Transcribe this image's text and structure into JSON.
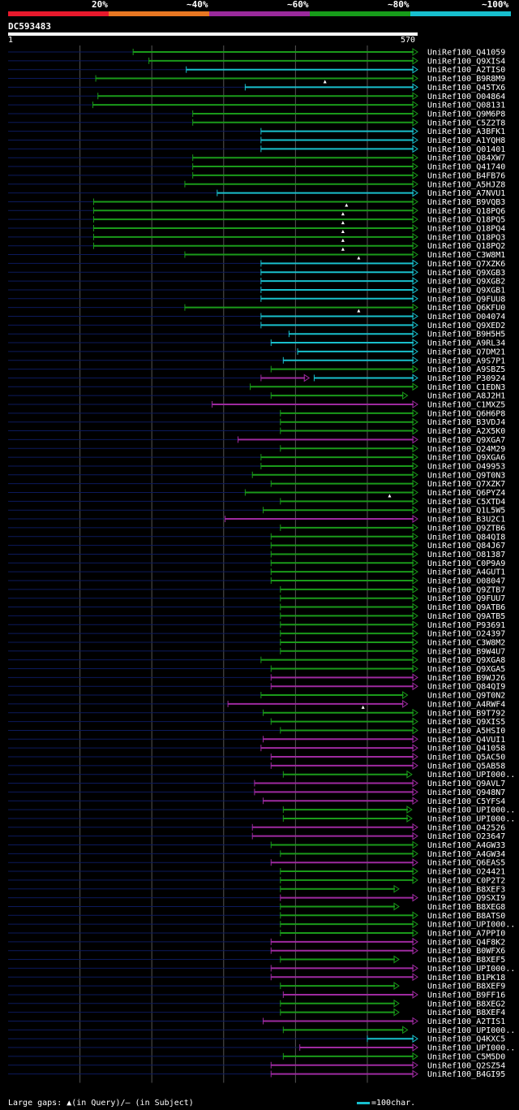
{
  "identity_legend": [
    {
      "label": "20%",
      "color": "#e8192c"
    },
    {
      "label": "~40%",
      "color": "#e87722"
    },
    {
      "label": "~60%",
      "color": "#9a2a9c"
    },
    {
      "label": "~80%",
      "color": "#179c1a"
    },
    {
      "label": "~100%",
      "color": "#17bfce"
    }
  ],
  "query": {
    "name": "DC593483",
    "start": "1",
    "end": "570",
    "length": 570
  },
  "footer": {
    "gaps_text": "Large gaps: ▲(in Query)/– (in Subject)",
    "scale_text": "=100char."
  },
  "colors": {
    "g": "#1a9a1a",
    "c": "#19bfcc",
    "m": "#9e2aa0",
    "track": "#0c1a5c",
    "grid": "#555555"
  },
  "hits": [
    {
      "id": "UniRef100_Q41059",
      "start": 174,
      "end": 570,
      "color": "g"
    },
    {
      "id": "UniRef100_Q9XIS4",
      "start": 196,
      "end": 570,
      "color": "g"
    },
    {
      "id": "UniRef100_A2TIS0",
      "start": 248,
      "end": 570,
      "color": "c"
    },
    {
      "id": "UniRef100_B9R8M9",
      "start": 122,
      "end": 570,
      "color": "g",
      "gap": 441
    },
    {
      "id": "UniRef100_Q45TX6",
      "start": 330,
      "end": 570,
      "color": "c"
    },
    {
      "id": "UniRef100_O04864",
      "start": 125,
      "end": 570,
      "color": "g"
    },
    {
      "id": "UniRef100_Q08131",
      "start": 118,
      "end": 570,
      "color": "g"
    },
    {
      "id": "UniRef100_Q9M6P8",
      "start": 257,
      "end": 570,
      "color": "g"
    },
    {
      "id": "UniRef100_C5Z2T8",
      "start": 257,
      "end": 570,
      "color": "g"
    },
    {
      "id": "UniRef100_A3BFK1",
      "start": 352,
      "end": 570,
      "color": "c"
    },
    {
      "id": "UniRef100_A1YQH8",
      "start": 352,
      "end": 570,
      "color": "c"
    },
    {
      "id": "UniRef100_Q01401",
      "start": 352,
      "end": 570,
      "color": "c"
    },
    {
      "id": "UniRef100_Q84XW7",
      "start": 257,
      "end": 570,
      "color": "g"
    },
    {
      "id": "UniRef100_Q41740",
      "start": 257,
      "end": 570,
      "color": "g"
    },
    {
      "id": "UniRef100_B4FB76",
      "start": 257,
      "end": 570,
      "color": "g"
    },
    {
      "id": "UniRef100_A5HJZ8",
      "start": 246,
      "end": 570,
      "color": "g"
    },
    {
      "id": "UniRef100_A7NVU1",
      "start": 291,
      "end": 570,
      "color": "c"
    },
    {
      "id": "UniRef100_B9VQB3",
      "start": 119,
      "end": 570,
      "color": "g",
      "gap": 471
    },
    {
      "id": "UniRef100_Q18PQ6",
      "start": 119,
      "end": 570,
      "color": "g",
      "gap": 466
    },
    {
      "id": "UniRef100_Q18PQ5",
      "start": 119,
      "end": 570,
      "color": "g",
      "gap": 466
    },
    {
      "id": "UniRef100_Q18PQ4",
      "start": 119,
      "end": 570,
      "color": "g",
      "gap": 466
    },
    {
      "id": "UniRef100_Q18PQ3",
      "start": 119,
      "end": 570,
      "color": "g",
      "gap": 466
    },
    {
      "id": "UniRef100_Q18PQ2",
      "start": 119,
      "end": 570,
      "color": "g",
      "gap": 466
    },
    {
      "id": "UniRef100_C3W8M1",
      "start": 246,
      "end": 570,
      "color": "g",
      "gap": 488
    },
    {
      "id": "UniRef100_Q7XZK6",
      "start": 352,
      "end": 570,
      "color": "c"
    },
    {
      "id": "UniRef100_Q9XGB3",
      "start": 352,
      "end": 570,
      "color": "c"
    },
    {
      "id": "UniRef100_Q9XGB2",
      "start": 352,
      "end": 570,
      "color": "c"
    },
    {
      "id": "UniRef100_Q9XGB1",
      "start": 352,
      "end": 570,
      "color": "c"
    },
    {
      "id": "UniRef100_Q9FUU8",
      "start": 352,
      "end": 570,
      "color": "c"
    },
    {
      "id": "UniRef100_Q6KFU0",
      "start": 246,
      "end": 570,
      "color": "g",
      "gap": 488
    },
    {
      "id": "UniRef100_O04074",
      "start": 352,
      "end": 570,
      "color": "c"
    },
    {
      "id": "UniRef100_Q9XED2",
      "start": 352,
      "end": 570,
      "color": "c"
    },
    {
      "id": "UniRef100_B9H5H5",
      "start": 391,
      "end": 570,
      "color": "c"
    },
    {
      "id": "UniRef100_A9RL34",
      "start": 366,
      "end": 570,
      "color": "c"
    },
    {
      "id": "UniRef100_Q7DM21",
      "start": 403,
      "end": 570,
      "color": "c"
    },
    {
      "id": "UniRef100_A9S7P1",
      "start": 383,
      "end": 570,
      "color": "c"
    },
    {
      "id": "UniRef100_A9SBZ5",
      "start": 366,
      "end": 570,
      "color": "g"
    },
    {
      "id": "UniRef100_P30924",
      "start": 352,
      "end": 570,
      "color": "m",
      "partial_end": 419,
      "segment2": {
        "start": 426,
        "end": 570,
        "color": "c"
      }
    },
    {
      "id": "UniRef100_C1EDN3",
      "start": 337,
      "end": 570,
      "color": "g"
    },
    {
      "id": "UniRef100_A8J2H1",
      "start": 366,
      "end": 556,
      "color": "g"
    },
    {
      "id": "UniRef100_C1MXZ5",
      "start": 284,
      "end": 570,
      "color": "m"
    },
    {
      "id": "UniRef100_Q6H6P8",
      "start": 379,
      "end": 570,
      "color": "g"
    },
    {
      "id": "UniRef100_B3VDJ4",
      "start": 379,
      "end": 570,
      "color": "g"
    },
    {
      "id": "UniRef100_A2X5K0",
      "start": 379,
      "end": 570,
      "color": "g"
    },
    {
      "id": "UniRef100_Q9XGA7",
      "start": 320,
      "end": 570,
      "color": "m"
    },
    {
      "id": "UniRef100_Q24M29",
      "start": 379,
      "end": 570,
      "color": "g"
    },
    {
      "id": "UniRef100_Q9XGA6",
      "start": 352,
      "end": 570,
      "color": "g"
    },
    {
      "id": "UniRef100_O49953",
      "start": 352,
      "end": 570,
      "color": "g"
    },
    {
      "id": "UniRef100_Q9T0N3",
      "start": 340,
      "end": 570,
      "color": "g"
    },
    {
      "id": "UniRef100_Q7XZK7",
      "start": 366,
      "end": 570,
      "color": "g"
    },
    {
      "id": "UniRef100_Q6PYZ4",
      "start": 330,
      "end": 570,
      "color": "g",
      "gap": 531
    },
    {
      "id": "UniRef100_C5XTD4",
      "start": 379,
      "end": 570,
      "color": "g"
    },
    {
      "id": "UniRef100_Q1L5W5",
      "start": 355,
      "end": 570,
      "color": "g"
    },
    {
      "id": "UniRef100_B3U2C1",
      "start": 302,
      "end": 570,
      "color": "m"
    },
    {
      "id": "UniRef100_Q9ZTB6",
      "start": 379,
      "end": 570,
      "color": "g"
    },
    {
      "id": "UniRef100_Q84QI8",
      "start": 366,
      "end": 570,
      "color": "g"
    },
    {
      "id": "UniRef100_Q84J67",
      "start": 366,
      "end": 570,
      "color": "g"
    },
    {
      "id": "UniRef100_O81387",
      "start": 366,
      "end": 570,
      "color": "g"
    },
    {
      "id": "UniRef100_C0P9A9",
      "start": 366,
      "end": 570,
      "color": "g"
    },
    {
      "id": "UniRef100_A4GUT1",
      "start": 366,
      "end": 570,
      "color": "g"
    },
    {
      "id": "UniRef100_O08047",
      "start": 366,
      "end": 570,
      "color": "g"
    },
    {
      "id": "UniRef100_Q9ZTB7",
      "start": 379,
      "end": 570,
      "color": "g"
    },
    {
      "id": "UniRef100_Q9FUU7",
      "start": 379,
      "end": 570,
      "color": "g"
    },
    {
      "id": "UniRef100_Q9ATB6",
      "start": 379,
      "end": 570,
      "color": "g"
    },
    {
      "id": "UniRef100_Q9ATB5",
      "start": 379,
      "end": 570,
      "color": "g"
    },
    {
      "id": "UniRef100_P93691",
      "start": 379,
      "end": 570,
      "color": "g"
    },
    {
      "id": "UniRef100_O24397",
      "start": 379,
      "end": 570,
      "color": "g"
    },
    {
      "id": "UniRef100_C3W8M2",
      "start": 379,
      "end": 570,
      "color": "g"
    },
    {
      "id": "UniRef100_B9W4U7",
      "start": 379,
      "end": 570,
      "color": "g"
    },
    {
      "id": "UniRef100_Q9XGA8",
      "start": 352,
      "end": 570,
      "color": "g"
    },
    {
      "id": "UniRef100_Q9XGA5",
      "start": 366,
      "end": 570,
      "color": "g"
    },
    {
      "id": "UniRef100_B9WJ26",
      "start": 366,
      "end": 570,
      "color": "m"
    },
    {
      "id": "UniRef100_Q84QI9",
      "start": 366,
      "end": 570,
      "color": "m"
    },
    {
      "id": "UniRef100_Q9T0N2",
      "start": 352,
      "end": 556,
      "color": "g"
    },
    {
      "id": "UniRef100_A4RWF4",
      "start": 306,
      "end": 556,
      "color": "m",
      "gap": 494
    },
    {
      "id": "UniRef100_B9T792",
      "start": 355,
      "end": 570,
      "color": "g"
    },
    {
      "id": "UniRef100_Q9XIS5",
      "start": 366,
      "end": 570,
      "color": "g"
    },
    {
      "id": "UniRef100_A5HSI0",
      "start": 379,
      "end": 570,
      "color": "g"
    },
    {
      "id": "UniRef100_Q4VUI1",
      "start": 355,
      "end": 570,
      "color": "m"
    },
    {
      "id": "UniRef100_Q41058",
      "start": 352,
      "end": 570,
      "color": "m"
    },
    {
      "id": "UniRef100_Q5AC50",
      "start": 366,
      "end": 570,
      "color": "m"
    },
    {
      "id": "UniRef100_Q5AB58",
      "start": 366,
      "end": 570,
      "color": "m"
    },
    {
      "id": "UniRef100_UPI000..",
      "start": 383,
      "end": 562,
      "color": "g"
    },
    {
      "id": "UniRef100_Q9AVL7",
      "start": 343,
      "end": 570,
      "color": "m"
    },
    {
      "id": "UniRef100_Q948N7",
      "start": 343,
      "end": 570,
      "color": "m"
    },
    {
      "id": "UniRef100_C5YFS4",
      "start": 355,
      "end": 570,
      "color": "m"
    },
    {
      "id": "UniRef100_UPI000..",
      "start": 383,
      "end": 562,
      "color": "g"
    },
    {
      "id": "UniRef100_UPI000..",
      "start": 383,
      "end": 562,
      "color": "g"
    },
    {
      "id": "UniRef100_O42526",
      "start": 340,
      "end": 570,
      "color": "m"
    },
    {
      "id": "UniRef100_O23647",
      "start": 340,
      "end": 570,
      "color": "m"
    },
    {
      "id": "UniRef100_A4GW33",
      "start": 366,
      "end": 570,
      "color": "g"
    },
    {
      "id": "UniRef100_A4GW34",
      "start": 379,
      "end": 570,
      "color": "g"
    },
    {
      "id": "UniRef100_Q6EAS5",
      "start": 366,
      "end": 570,
      "color": "m"
    },
    {
      "id": "UniRef100_O24421",
      "start": 379,
      "end": 570,
      "color": "g"
    },
    {
      "id": "UniRef100_C0P2T2",
      "start": 379,
      "end": 570,
      "color": "g"
    },
    {
      "id": "UniRef100_B8XEF3",
      "start": 379,
      "end": 544,
      "color": "g"
    },
    {
      "id": "UniRef100_Q9SXI9",
      "start": 379,
      "end": 570,
      "color": "m"
    },
    {
      "id": "UniRef100_B8XEG8",
      "start": 379,
      "end": 544,
      "color": "g"
    },
    {
      "id": "UniRef100_B8ATS0",
      "start": 379,
      "end": 570,
      "color": "g"
    },
    {
      "id": "UniRef100_UPI000..",
      "start": 379,
      "end": 570,
      "color": "g"
    },
    {
      "id": "UniRef100_A7PPI0",
      "start": 379,
      "end": 570,
      "color": "g"
    },
    {
      "id": "UniRef100_Q4F8K2",
      "start": 366,
      "end": 570,
      "color": "m"
    },
    {
      "id": "UniRef100_B0WFX6",
      "start": 366,
      "end": 570,
      "color": "m"
    },
    {
      "id": "UniRef100_B8XEF5",
      "start": 379,
      "end": 544,
      "color": "g"
    },
    {
      "id": "UniRef100_UPI000..",
      "start": 366,
      "end": 570,
      "color": "m"
    },
    {
      "id": "UniRef100_B1PK18",
      "start": 366,
      "end": 570,
      "color": "m"
    },
    {
      "id": "UniRef100_B8XEF9",
      "start": 379,
      "end": 544,
      "color": "g"
    },
    {
      "id": "UniRef100_B9FF16",
      "start": 383,
      "end": 570,
      "color": "m"
    },
    {
      "id": "UniRef100_B8XEG2",
      "start": 379,
      "end": 544,
      "color": "g"
    },
    {
      "id": "UniRef100_B8XEF4",
      "start": 379,
      "end": 544,
      "color": "g"
    },
    {
      "id": "UniRef100_A2TIS1",
      "start": 355,
      "end": 570,
      "color": "m"
    },
    {
      "id": "UniRef100_UPI000..",
      "start": 383,
      "end": 556,
      "color": "g"
    },
    {
      "id": "UniRef100_Q4KXC5",
      "start": 500,
      "end": 570,
      "color": "c"
    },
    {
      "id": "UniRef100_UPI000..",
      "start": 406,
      "end": 570,
      "color": "m"
    },
    {
      "id": "UniRef100_C5M5D0",
      "start": 383,
      "end": 570,
      "color": "g"
    },
    {
      "id": "UniRef100_Q2SZ54",
      "start": 366,
      "end": 570,
      "color": "m"
    },
    {
      "id": "UniRef100_B4GI95",
      "start": 366,
      "end": 570,
      "color": "m"
    }
  ]
}
